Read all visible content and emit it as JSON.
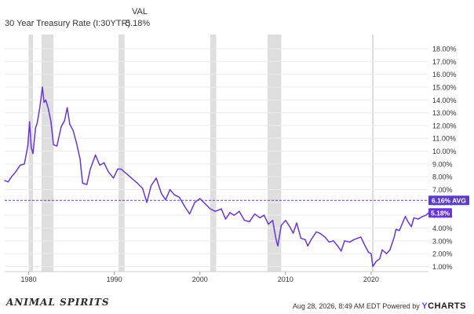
{
  "legend": {
    "header": "VAL",
    "series_label": "30 Year Treasury Rate (I:30YTR)",
    "series_value": "5.18%"
  },
  "footer": {
    "brand_text": "ANIMAL SPIRITS",
    "timestamp": "Aug 28, 2026, 8:49 AM EDT Powered by",
    "powered_brand_y": "Y",
    "powered_brand_rest": "CHARTS"
  },
  "colors": {
    "series": "#6a35d6",
    "recession": "#dedede",
    "grid": "#ececec",
    "avg_line": "#5b3cc4"
  },
  "chart_data": {
    "type": "line",
    "title": "",
    "xlabel": "",
    "ylabel": "",
    "xlim": [
      1977.2,
      2026.7
    ],
    "ylim": [
      0.6,
      19.1
    ],
    "x_ticks": [
      1980,
      1990,
      2000,
      2010,
      2020
    ],
    "y_ticks": [
      1,
      2,
      3,
      4,
      5,
      6,
      7,
      8,
      9,
      10,
      11,
      12,
      13,
      14,
      15,
      16,
      17,
      18
    ],
    "y_tick_labels": [
      "1.00%",
      "2.00%",
      "3.00%",
      "4.00%",
      "5.00%",
      "6.00%",
      "7.00%",
      "8.00%",
      "9.00%",
      "10.00%",
      "11.00%",
      "12.00%",
      "13.00%",
      "14.00%",
      "15.00%",
      "16.00%",
      "17.00%",
      "18.00%"
    ],
    "grid": true,
    "recessions": [
      [
        1980.0,
        1980.5
      ],
      [
        1981.5,
        1982.9
      ],
      [
        1990.5,
        1991.2
      ],
      [
        2001.2,
        2001.9
      ],
      [
        2007.9,
        2009.5
      ],
      [
        2020.1,
        2020.3
      ]
    ],
    "average": {
      "value": 6.16,
      "label": "6.16% AVG"
    },
    "last_value": {
      "value": 5.18,
      "label": "5.18%"
    },
    "series": [
      {
        "name": "30 Year Treasury Rate (I:30YTR)",
        "x": [
          1977.2,
          1977.6,
          1978.0,
          1978.5,
          1979.0,
          1979.5,
          1979.9,
          1980.1,
          1980.3,
          1980.5,
          1980.8,
          1981.0,
          1981.3,
          1981.6,
          1981.8,
          1982.0,
          1982.3,
          1982.6,
          1982.9,
          1983.3,
          1983.8,
          1984.2,
          1984.5,
          1984.8,
          1985.2,
          1985.6,
          1986.0,
          1986.3,
          1986.8,
          1987.2,
          1987.8,
          1988.3,
          1988.8,
          1989.3,
          1989.9,
          1990.4,
          1990.8,
          1991.5,
          1992.0,
          1992.7,
          1993.3,
          1993.8,
          1994.3,
          1994.9,
          1995.5,
          1996.0,
          1996.5,
          1997.0,
          1997.6,
          1998.3,
          1998.8,
          1999.4,
          2000.0,
          2000.6,
          2001.2,
          2001.8,
          2002.5,
          2003.0,
          2003.5,
          2004.0,
          2004.6,
          2005.2,
          2005.8,
          2006.4,
          2007.0,
          2007.5,
          2008.0,
          2008.5,
          2008.9,
          2009.1,
          2009.5,
          2010.0,
          2010.5,
          2010.9,
          2011.3,
          2011.8,
          2012.3,
          2012.6,
          2013.0,
          2013.6,
          2014.0,
          2014.6,
          2015.1,
          2015.6,
          2016.1,
          2016.5,
          2016.9,
          2017.5,
          2018.0,
          2018.8,
          2019.3,
          2019.7,
          2020.0,
          2020.2,
          2020.6,
          2021.0,
          2021.3,
          2021.8,
          2022.2,
          2022.7,
          2022.9,
          2023.3,
          2023.8,
          2024.0,
          2024.3,
          2024.7,
          2025.0,
          2025.5,
          2026.0,
          2026.4,
          2026.7
        ],
        "values": [
          7.7,
          7.6,
          8.0,
          8.4,
          8.9,
          9.0,
          10.4,
          12.3,
          10.3,
          9.8,
          11.8,
          12.2,
          13.4,
          15.0,
          13.8,
          14.0,
          13.3,
          12.3,
          10.5,
          10.4,
          11.9,
          12.4,
          13.4,
          12.1,
          11.6,
          10.6,
          9.4,
          7.5,
          7.4,
          8.6,
          9.7,
          8.9,
          9.1,
          8.4,
          7.9,
          8.6,
          8.6,
          8.2,
          7.9,
          7.5,
          7.1,
          6.0,
          7.3,
          7.9,
          6.7,
          6.2,
          7.0,
          6.6,
          6.4,
          5.6,
          5.1,
          6.0,
          6.3,
          5.9,
          5.5,
          5.3,
          5.5,
          4.7,
          5.2,
          5.0,
          5.3,
          4.6,
          4.5,
          5.1,
          4.8,
          5.0,
          4.3,
          4.6,
          3.1,
          2.6,
          4.2,
          4.6,
          4.1,
          3.6,
          4.4,
          3.2,
          3.1,
          2.6,
          3.1,
          3.7,
          3.6,
          3.3,
          2.9,
          3.0,
          2.6,
          2.2,
          3.0,
          2.9,
          3.1,
          3.3,
          2.6,
          2.1,
          2.0,
          1.0,
          1.4,
          1.6,
          2.3,
          2.0,
          2.3,
          3.3,
          3.9,
          3.8,
          4.6,
          4.9,
          4.5,
          4.1,
          4.8,
          4.7,
          4.9,
          5.0,
          5.18
        ]
      }
    ]
  }
}
